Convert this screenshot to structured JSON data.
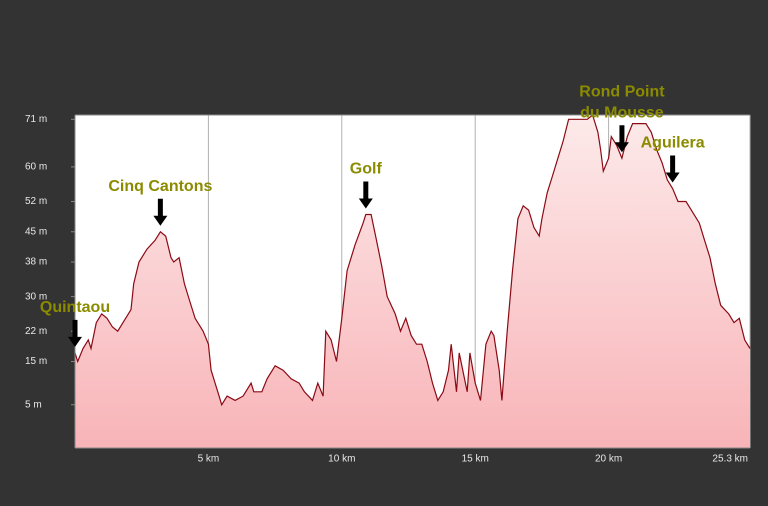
{
  "chart_data": {
    "type": "area",
    "xlim": [
      0,
      25.3
    ],
    "ylim": [
      -5,
      72
    ],
    "xticks": [
      {
        "value": 5,
        "label": "5 km"
      },
      {
        "value": 10,
        "label": "10 km"
      },
      {
        "value": 15,
        "label": "15 km"
      },
      {
        "value": 20,
        "label": "20 km"
      },
      {
        "value": 25.3,
        "label": "25.3 km"
      }
    ],
    "yticks": [
      {
        "value": 5,
        "label": "5 m"
      },
      {
        "value": 15,
        "label": "15 m"
      },
      {
        "value": 22,
        "label": "22 m"
      },
      {
        "value": 30,
        "label": "30 m"
      },
      {
        "value": 38,
        "label": "38 m"
      },
      {
        "value": 45,
        "label": "45 m"
      },
      {
        "value": 52,
        "label": "52 m"
      },
      {
        "value": 60,
        "label": "60 m"
      },
      {
        "value": 71,
        "label": "71 m"
      }
    ],
    "grid": true,
    "color": "#8b0a14",
    "fill_top": "#fdeaea",
    "fill_bottom": "#f8b4b8",
    "x": [
      0,
      0.1,
      0.3,
      0.5,
      0.6,
      0.8,
      1.0,
      1.2,
      1.4,
      1.6,
      1.8,
      2.1,
      2.2,
      2.4,
      2.7,
      3.0,
      3.2,
      3.4,
      3.6,
      3.7,
      3.9,
      4.1,
      4.3,
      4.5,
      4.8,
      5.0,
      5.1,
      5.4,
      5.5,
      5.7,
      6.0,
      6.3,
      6.6,
      6.7,
      7.0,
      7.2,
      7.5,
      7.8,
      8.1,
      8.4,
      8.6,
      8.9,
      9.1,
      9.3,
      9.4,
      9.6,
      9.8,
      10.0,
      10.2,
      10.5,
      10.8,
      10.9,
      11.1,
      11.3,
      11.5,
      11.7,
      12.0,
      12.2,
      12.4,
      12.6,
      12.8,
      13.0,
      13.2,
      13.4,
      13.6,
      13.8,
      14.0,
      14.1,
      14.3,
      14.4,
      14.7,
      14.8,
      15.0,
      15.2,
      15.4,
      15.6,
      15.7,
      15.9,
      16.0,
      16.2,
      16.4,
      16.6,
      16.8,
      17.0,
      17.2,
      17.4,
      17.5,
      17.7,
      17.9,
      18.1,
      18.3,
      18.5,
      18.7,
      18.9,
      19.2,
      19.4,
      19.6,
      19.7,
      19.8,
      20.0,
      20.1,
      20.3,
      20.5,
      20.7,
      20.9,
      21.1,
      21.4,
      21.6,
      21.8,
      22.0,
      22.2,
      22.4,
      22.6,
      22.9,
      23.1,
      23.4,
      23.6,
      23.8,
      24.0,
      24.2,
      24.5,
      24.7,
      24.9,
      25.1,
      25.3
    ],
    "values": [
      17,
      15,
      18,
      20,
      18,
      24,
      26,
      25,
      23,
      22,
      24,
      27,
      33,
      38,
      41,
      43,
      45,
      44,
      39,
      38,
      39,
      33,
      29,
      25,
      22,
      19,
      13,
      7,
      5,
      7,
      6,
      7,
      10,
      8,
      8,
      11,
      14,
      13,
      11,
      10,
      8,
      6,
      10,
      7,
      22,
      20,
      15,
      25,
      36,
      42,
      47,
      49,
      49,
      43,
      37,
      30,
      26,
      22,
      25,
      21,
      19,
      19,
      15,
      10,
      6,
      8,
      13,
      19,
      8,
      17,
      8,
      17,
      10,
      6,
      19,
      22,
      21,
      13,
      6,
      22,
      36,
      48,
      51,
      50,
      46,
      44,
      48,
      54,
      58,
      62,
      66,
      71,
      71,
      71,
      71,
      72,
      68,
      64,
      59,
      62,
      67,
      65,
      62,
      67,
      70,
      70,
      70,
      68,
      64,
      61,
      57,
      55,
      52,
      52,
      50,
      47,
      43,
      39,
      33,
      28,
      26,
      24,
      25,
      20,
      18
    ],
    "annotations": [
      {
        "text": [
          "Quintaou"
        ],
        "x": 0
      },
      {
        "text": [
          "Cinq Cantons"
        ],
        "x": 3.2
      },
      {
        "text": [
          "Golf"
        ],
        "x": 10.9
      },
      {
        "text": [
          "Rond Point",
          "du Mousse"
        ],
        "x": 20.5
      },
      {
        "text": [
          "Aguilera"
        ],
        "x": 22.4
      }
    ]
  }
}
